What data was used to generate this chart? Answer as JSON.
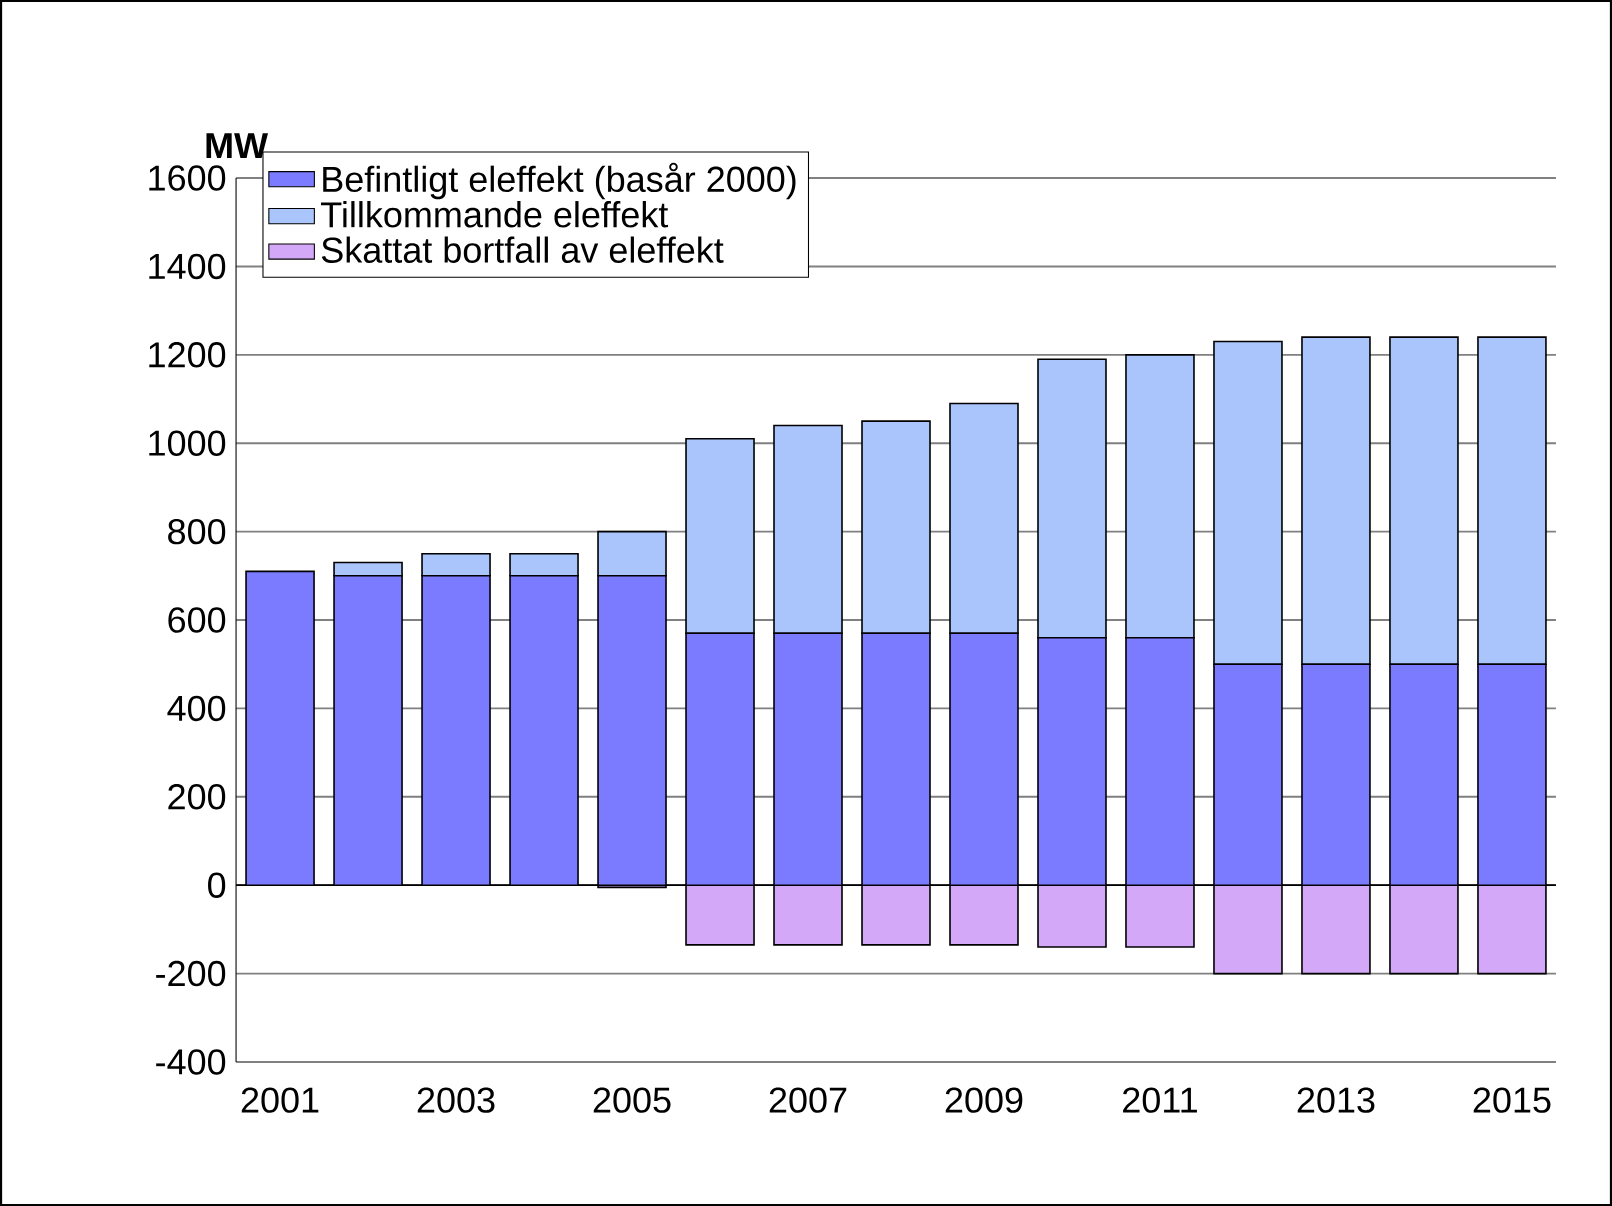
{
  "chart_data": {
    "type": "bar",
    "stacked": true,
    "ylabel": "MW",
    "categories": [
      "2001",
      null,
      "2003",
      null,
      "2005",
      null,
      "2007",
      null,
      "2009",
      null,
      "2011",
      null,
      "2013",
      null,
      "2015"
    ],
    "series": [
      {
        "name": "Befintligt eleffekt (basår 2000)",
        "color": "#7b7bff",
        "values": [
          710,
          700,
          700,
          700,
          700,
          570,
          570,
          570,
          570,
          560,
          560,
          500,
          500,
          500,
          500
        ]
      },
      {
        "name": "Tillkommande eleffekt",
        "color": "#aac4fc",
        "values": [
          0,
          30,
          50,
          50,
          100,
          440,
          470,
          480,
          520,
          630,
          640,
          730,
          740,
          740,
          740
        ]
      },
      {
        "name": "Skattat bortfall av eleffekt",
        "color": "#d4a8f8",
        "values": [
          0,
          0,
          0,
          0,
          -5,
          -135,
          -135,
          -135,
          -135,
          -140,
          -140,
          -200,
          -200,
          -200,
          -200
        ]
      }
    ],
    "ylim": [
      -400,
      1600
    ],
    "yticks": [
      -400,
      -200,
      0,
      200,
      400,
      600,
      800,
      1000,
      1200,
      1400,
      1600
    ],
    "grid": "y",
    "legend": "top left"
  }
}
